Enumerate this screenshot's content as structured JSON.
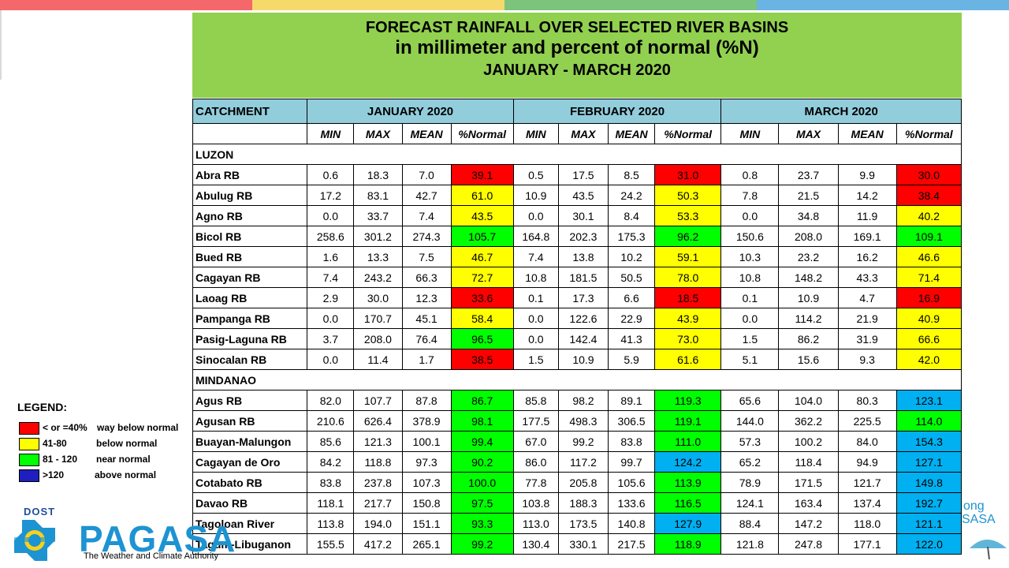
{
  "colors": {
    "header_green": "#92d050",
    "table_header_blue": "#92cddc",
    "way_below_normal": "#ff0000",
    "below_normal": "#ffff00",
    "near_normal": "#00ff00",
    "above_normal_cell": "#00b0f0",
    "above_normal_legend": "#1f1fbf"
  },
  "title": {
    "line1": "FORECAST RAINFALL OVER SELECTED RIVER BASINS",
    "line2": "in millimeter  and percent of normal (%N)",
    "line3": "JANUARY  - MARCH 2020"
  },
  "table": {
    "catchment_header": "CATCHMENT",
    "months": [
      "JANUARY 2020",
      "FEBRUARY 2020",
      "MARCH 2020"
    ],
    "subheaders": [
      "MIN",
      "MAX",
      "MEAN",
      "%Normal"
    ],
    "sections": [
      {
        "name": "LUZON",
        "rows": [
          {
            "name": "Abra RB",
            "values": [
              "0.6",
              "18.3",
              "7.0",
              "39.1",
              "0.5",
              "17.5",
              "8.5",
              "31.0",
              "0.8",
              "23.7",
              "9.9",
              "30.0"
            ],
            "classes": [
              "red",
              "red",
              "red"
            ]
          },
          {
            "name": "Abulug RB",
            "values": [
              "17.2",
              "83.1",
              "42.7",
              "61.0",
              "10.9",
              "43.5",
              "24.2",
              "50.3",
              "7.8",
              "21.5",
              "14.2",
              "38.4"
            ],
            "classes": [
              "yellow",
              "yellow",
              "red"
            ]
          },
          {
            "name": "Agno RB",
            "values": [
              "0.0",
              "33.7",
              "7.4",
              "43.5",
              "0.0",
              "30.1",
              "8.4",
              "53.3",
              "0.0",
              "34.8",
              "11.9",
              "40.2"
            ],
            "classes": [
              "yellow",
              "yellow",
              "yellow"
            ]
          },
          {
            "name": "Bicol RB",
            "values": [
              "258.6",
              "301.2",
              "274.3",
              "105.7",
              "164.8",
              "202.3",
              "175.3",
              "96.2",
              "150.6",
              "208.0",
              "169.1",
              "109.1"
            ],
            "classes": [
              "green",
              "green",
              "green"
            ]
          },
          {
            "name": "Bued RB",
            "values": [
              "1.6",
              "13.3",
              "7.5",
              "46.7",
              "7.4",
              "13.8",
              "10.2",
              "59.1",
              "10.3",
              "23.2",
              "16.2",
              "46.6"
            ],
            "classes": [
              "yellow",
              "yellow",
              "yellow"
            ]
          },
          {
            "name": "Cagayan RB",
            "values": [
              "7.4",
              "243.2",
              "66.3",
              "72.7",
              "10.8",
              "181.5",
              "50.5",
              "78.0",
              "10.8",
              "148.2",
              "43.3",
              "71.4"
            ],
            "classes": [
              "yellow",
              "yellow",
              "yellow"
            ]
          },
          {
            "name": "Laoag RB",
            "values": [
              "2.9",
              "30.0",
              "12.3",
              "33.6",
              "0.1",
              "17.3",
              "6.6",
              "18.5",
              "0.1",
              "10.9",
              "4.7",
              "16.9"
            ],
            "classes": [
              "red",
              "red",
              "red"
            ]
          },
          {
            "name": "Pampanga RB",
            "values": [
              "0.0",
              "170.7",
              "45.1",
              "58.4",
              "0.0",
              "122.6",
              "22.9",
              "43.9",
              "0.0",
              "114.2",
              "21.9",
              "40.9"
            ],
            "classes": [
              "yellow",
              "yellow",
              "yellow"
            ]
          },
          {
            "name": "Pasig-Laguna RB",
            "values": [
              "3.7",
              "208.0",
              "76.4",
              "96.5",
              "0.0",
              "142.4",
              "41.3",
              "73.0",
              "1.5",
              "86.2",
              "31.9",
              "66.6"
            ],
            "classes": [
              "green",
              "yellow",
              "yellow"
            ]
          },
          {
            "name": "Sinocalan RB",
            "values": [
              "0.0",
              "11.4",
              "1.7",
              "38.5",
              "1.5",
              "10.9",
              "5.9",
              "61.6",
              "5.1",
              "15.6",
              "9.3",
              "42.0"
            ],
            "classes": [
              "red",
              "yellow",
              "yellow"
            ]
          }
        ]
      },
      {
        "name": "MINDANAO",
        "rows": [
          {
            "name": "Agus RB",
            "values": [
              "82.0",
              "107.7",
              "87.8",
              "86.7",
              "85.8",
              "98.2",
              "89.1",
              "119.3",
              "65.6",
              "104.0",
              "80.3",
              "123.1"
            ],
            "classes": [
              "green",
              "green",
              "blue"
            ]
          },
          {
            "name": "Agusan RB",
            "values": [
              "210.6",
              "626.4",
              "378.9",
              "98.1",
              "177.5",
              "498.3",
              "306.5",
              "119.1",
              "144.0",
              "362.2",
              "225.5",
              "114.0"
            ],
            "classes": [
              "green",
              "green",
              "green"
            ]
          },
          {
            "name": "Buayan-Malungon",
            "values": [
              "85.6",
              "121.3",
              "100.1",
              "99.4",
              "67.0",
              "99.2",
              "83.8",
              "111.0",
              "57.3",
              "100.2",
              "84.0",
              "154.3"
            ],
            "classes": [
              "green",
              "green",
              "blue"
            ]
          },
          {
            "name": "Cagayan de Oro",
            "values": [
              "84.2",
              "118.8",
              "97.3",
              "90.2",
              "86.0",
              "117.2",
              "99.7",
              "124.2",
              "65.2",
              "118.4",
              "94.9",
              "127.1"
            ],
            "classes": [
              "green",
              "blue",
              "blue"
            ]
          },
          {
            "name": "Cotabato RB",
            "values": [
              "83.8",
              "237.8",
              "107.3",
              "100.0",
              "77.8",
              "205.8",
              "105.6",
              "113.9",
              "78.9",
              "171.5",
              "121.7",
              "149.8"
            ],
            "classes": [
              "green",
              "green",
              "blue"
            ]
          },
          {
            "name": "Davao RB",
            "values": [
              "118.1",
              "217.7",
              "150.8",
              "97.5",
              "103.8",
              "188.3",
              "133.6",
              "116.5",
              "124.1",
              "163.4",
              "137.4",
              "192.7"
            ],
            "classes": [
              "green",
              "green",
              "blue"
            ]
          },
          {
            "name": "Tagoloan River",
            "values": [
              "113.8",
              "194.0",
              "151.1",
              "93.3",
              "113.0",
              "173.5",
              "140.8",
              "127.9",
              "88.4",
              "147.2",
              "118.0",
              "121.1"
            ],
            "classes": [
              "green",
              "blue",
              "blue"
            ]
          },
          {
            "name": "Tagum-Libuganon",
            "values": [
              "155.5",
              "417.2",
              "265.1",
              "99.2",
              "130.4",
              "330.1",
              "217.5",
              "118.9",
              "121.8",
              "247.8",
              "177.1",
              "122.0"
            ],
            "classes": [
              "green",
              "green",
              "blue"
            ]
          }
        ]
      }
    ]
  },
  "legend": {
    "title": "LEGEND:",
    "items": [
      {
        "range": "< or =40%",
        "desc": "way below normal",
        "color": "#ff0000"
      },
      {
        "range": "41-80",
        "desc": "below normal",
        "color": "#ffff00"
      },
      {
        "range": "81 - 120",
        "desc": "near normal",
        "color": "#00ff00"
      },
      {
        "range": ">120",
        "desc": "above normal",
        "color": "#1f1fbf"
      }
    ]
  },
  "logo": {
    "dost": "DOST",
    "pagasa": "PAGASA",
    "tagline": "The Weather and Climate Authority",
    "right_line1": "ong",
    "right_line2": "SASA"
  },
  "top_bar_colors": [
    "#f4676a",
    "#f6d96b",
    "#7cc47b",
    "#6ab4e3"
  ]
}
